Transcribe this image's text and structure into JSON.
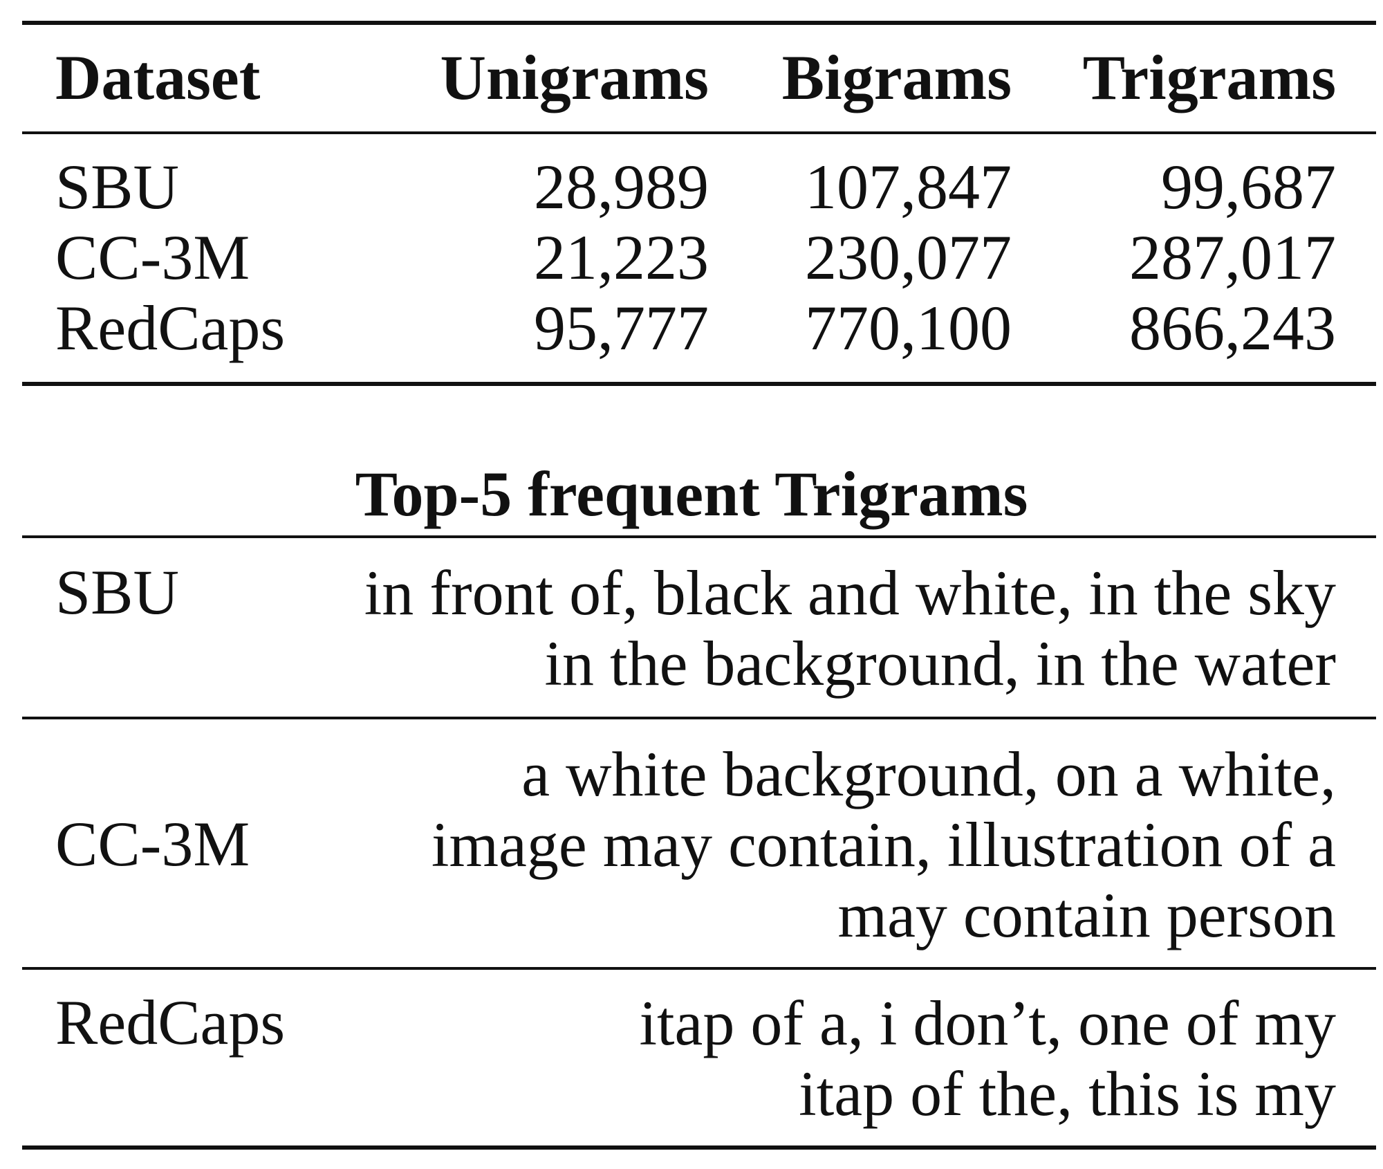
{
  "table": {
    "headers": [
      "Dataset",
      "Unigrams",
      "Bigrams",
      "Trigrams"
    ],
    "rows": [
      {
        "dataset": "SBU",
        "unigrams": "28,989",
        "bigrams": "107,847",
        "trigrams": "99,687"
      },
      {
        "dataset": "CC-3M",
        "unigrams": "21,223",
        "bigrams": "230,077",
        "trigrams": "287,017"
      },
      {
        "dataset": "RedCaps",
        "unigrams": "95,777",
        "bigrams": "770,100",
        "trigrams": "866,243"
      }
    ]
  },
  "trigrams_section": {
    "title": "Top-5 frequent Trigrams",
    "rows": [
      {
        "dataset": "SBU",
        "lines": [
          "in front of, black and white, in the sky",
          "in the background, in the water"
        ]
      },
      {
        "dataset": "CC-3M",
        "lines": [
          "a white background, on a white,",
          "image may contain, illustration of a",
          "may contain person"
        ]
      },
      {
        "dataset": "RedCaps",
        "lines": [
          "itap of a, i don’t, one of my",
          "itap of the, this is my"
        ]
      }
    ]
  }
}
